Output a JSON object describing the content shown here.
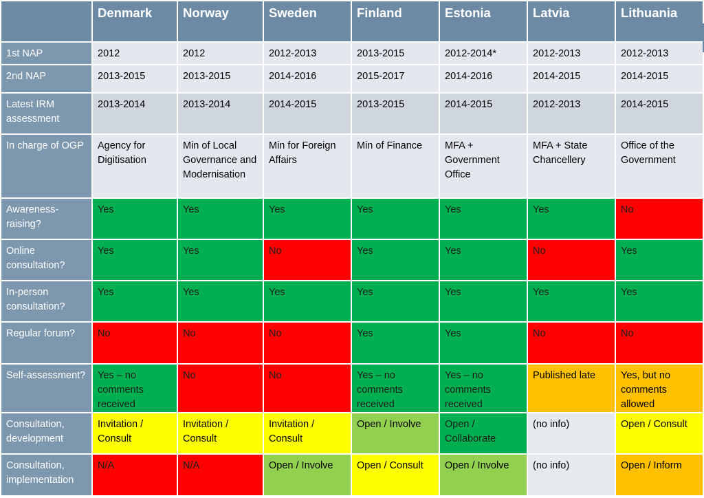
{
  "colors": {
    "header_bg": "#6d8aa4",
    "row_header_bg": "#7d97ae",
    "info_light": "#e4e8ee",
    "info_dark": "#cfd6de",
    "green": "#00b050",
    "red": "#ff0000",
    "yellow": "#ffff00",
    "light_green": "#92d050",
    "orange": "#ffc000",
    "gray": "#e6e9ed"
  },
  "table": {
    "columns": [
      "Denmark",
      "Norway",
      "Sweden",
      "Finland",
      "Estonia",
      "Latvia",
      "Lithuania"
    ],
    "rows": [
      {
        "label": "1st NAP",
        "h": 33,
        "shade": "info_light",
        "cells": [
          {
            "t": "2012"
          },
          {
            "t": "2012"
          },
          {
            "t": "2012-2013"
          },
          {
            "t": "2013-2015"
          },
          {
            "t": "2012-2014*"
          },
          {
            "t": "2012-2013"
          },
          {
            "t": "2012-2013"
          }
        ]
      },
      {
        "label": "2nd NAP",
        "h": 41,
        "shade": "info_light",
        "cells": [
          {
            "t": "2013-2015"
          },
          {
            "t": "2013-2015"
          },
          {
            "t": "2014-2016"
          },
          {
            "t": "2015-2017"
          },
          {
            "t": "2014-2016"
          },
          {
            "t": "2014-2015"
          },
          {
            "t": "2014-2015"
          }
        ]
      },
      {
        "label": "Latest IRM assessment",
        "h": 60,
        "shade": "info_dark",
        "cells": [
          {
            "t": "2013-2014"
          },
          {
            "t": "2013-2014"
          },
          {
            "t": "2014-2015"
          },
          {
            "t": "2013-2015"
          },
          {
            "t": "2014-2015"
          },
          {
            "t": "2012-2013"
          },
          {
            "t": "2014-2015"
          }
        ]
      },
      {
        "label": "In charge of OGP",
        "h": 93,
        "shade": "info_light",
        "cells": [
          {
            "t": "Agency for Digitisation"
          },
          {
            "t": "Min of Local Governance and Modernisation"
          },
          {
            "t": "Min for Foreign Affairs"
          },
          {
            "t": "Min of Finance"
          },
          {
            "t": "MFA + Government Office"
          },
          {
            "t": "MFA + State Chancellery"
          },
          {
            "t": "Office of the Government"
          }
        ]
      },
      {
        "label": "Awareness-raising?",
        "h": 60,
        "cells": [
          {
            "t": "Yes",
            "c": "green"
          },
          {
            "t": "Yes",
            "c": "green"
          },
          {
            "t": "Yes",
            "c": "green"
          },
          {
            "t": "Yes",
            "c": "green"
          },
          {
            "t": "Yes",
            "c": "green"
          },
          {
            "t": "Yes",
            "c": "green"
          },
          {
            "t": "No",
            "c": "red"
          }
        ]
      },
      {
        "label": "Online consultation?",
        "h": 60,
        "cells": [
          {
            "t": "Yes",
            "c": "green"
          },
          {
            "t": "Yes",
            "c": "green"
          },
          {
            "t": "No",
            "c": "red"
          },
          {
            "t": "Yes",
            "c": "green"
          },
          {
            "t": "Yes",
            "c": "green"
          },
          {
            "t": "No",
            "c": "red"
          },
          {
            "t": "Yes",
            "c": "green"
          }
        ]
      },
      {
        "label": "In-person consultation?",
        "h": 60,
        "cells": [
          {
            "t": "Yes",
            "c": "green"
          },
          {
            "t": "Yes",
            "c": "green"
          },
          {
            "t": "Yes",
            "c": "green"
          },
          {
            "t": "Yes",
            "c": "green"
          },
          {
            "t": "Yes",
            "c": "green"
          },
          {
            "t": "Yes",
            "c": "green"
          },
          {
            "t": "Yes",
            "c": "green"
          }
        ]
      },
      {
        "label": "Regular forum?",
        "h": 61,
        "cells": [
          {
            "t": "No",
            "c": "red"
          },
          {
            "t": "No",
            "c": "red"
          },
          {
            "t": "No",
            "c": "red"
          },
          {
            "t": "Yes",
            "c": "green"
          },
          {
            "t": "Yes",
            "c": "green"
          },
          {
            "t": "No",
            "c": "red"
          },
          {
            "t": "No",
            "c": "red"
          }
        ]
      },
      {
        "label": "Self-assessment?",
        "h": 71,
        "cells": [
          {
            "t": "Yes – no comments received",
            "c": "green"
          },
          {
            "t": "No",
            "c": "red"
          },
          {
            "t": "No",
            "c": "red"
          },
          {
            "t": "Yes – no comments received",
            "c": "green"
          },
          {
            "t": "Yes – no comments received",
            "c": "green"
          },
          {
            "t": "Published late",
            "c": "orange"
          },
          {
            "t": "Yes, but no comments allowed",
            "c": "orange"
          }
        ]
      },
      {
        "label": "Consultation, development",
        "h": 60,
        "cells": [
          {
            "t": "Invitation / Consult",
            "c": "yellow"
          },
          {
            "t": "Invitation / Consult",
            "c": "yellow"
          },
          {
            "t": "Invitation / Consult",
            "c": "yellow"
          },
          {
            "t": "Open / Involve",
            "c": "light_green"
          },
          {
            "t": "Open / Collaborate",
            "c": "green"
          },
          {
            "t": "(no info)",
            "c": "gray"
          },
          {
            "t": "Open / Consult",
            "c": "yellow"
          }
        ]
      },
      {
        "label": "Consultation, implementation",
        "h": 61,
        "cells": [
          {
            "t": "N/A",
            "c": "red"
          },
          {
            "t": "N/A",
            "c": "red"
          },
          {
            "t": "Open / Involve",
            "c": "light_green"
          },
          {
            "t": "Open / Consult",
            "c": "yellow"
          },
          {
            "t": "Open / Involve",
            "c": "light_green"
          },
          {
            "t": "(no info)",
            "c": "gray"
          },
          {
            "t": "Open / Inform",
            "c": "orange"
          }
        ]
      }
    ]
  }
}
